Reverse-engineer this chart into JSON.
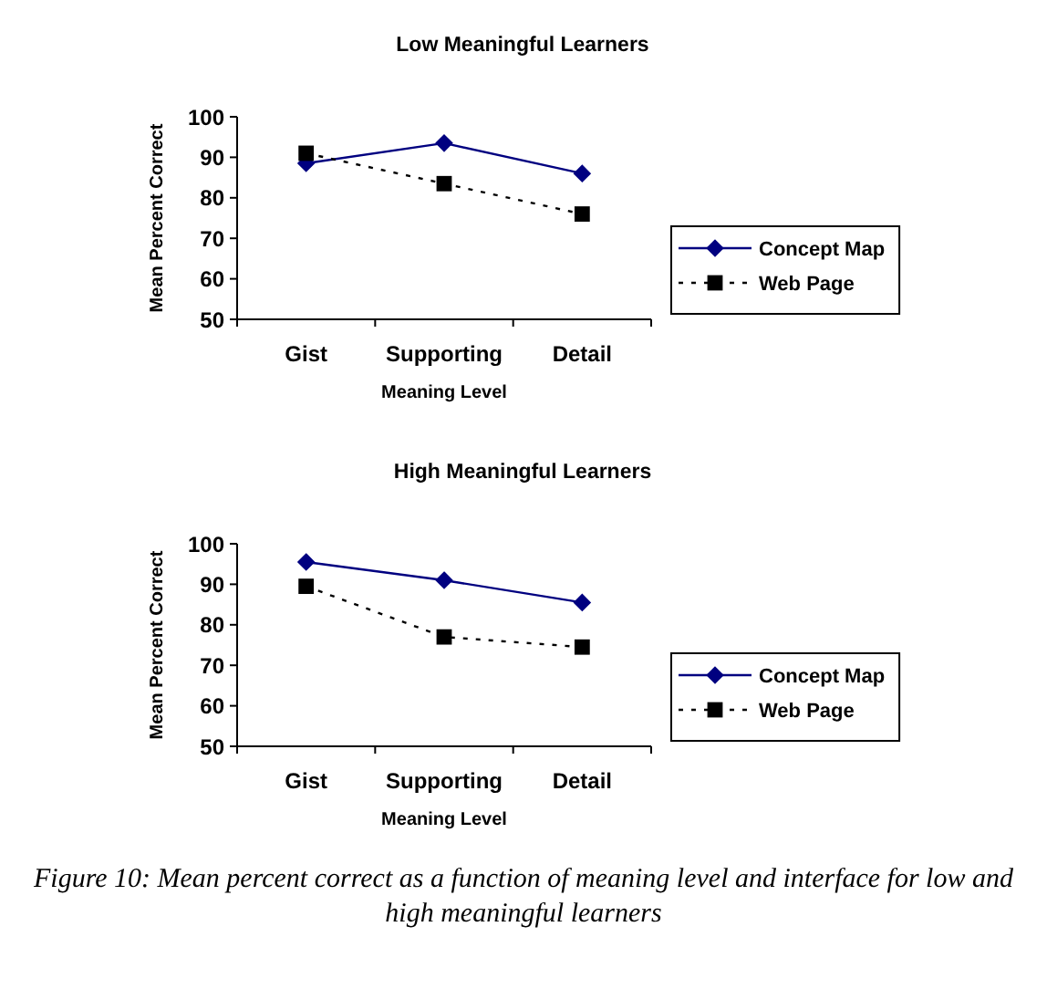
{
  "chart_data": [
    {
      "type": "line",
      "title": "Low Meaningful Learners",
      "xlabel": "Meaning Level",
      "ylabel": "Mean Percent Correct",
      "categories": [
        "Gist",
        "Supporting",
        "Detail"
      ],
      "ylim": [
        50,
        100
      ],
      "yticks": [
        50,
        60,
        70,
        80,
        90,
        100
      ],
      "legend": "right",
      "series": [
        {
          "name": "Concept Map",
          "color": "#000080",
          "values": [
            88.5,
            93.5,
            86
          ],
          "marker": "diamond",
          "line_style": "solid"
        },
        {
          "name": "Web Page",
          "color": "#000000",
          "values": [
            91,
            83.5,
            76
          ],
          "marker": "square",
          "line_style": "dotted"
        }
      ]
    },
    {
      "type": "line",
      "title": "High Meaningful Learners",
      "xlabel": "Meaning Level",
      "ylabel": "Mean Percent Correct",
      "categories": [
        "Gist",
        "Supporting",
        "Detail"
      ],
      "ylim": [
        50,
        100
      ],
      "yticks": [
        50,
        60,
        70,
        80,
        90,
        100
      ],
      "legend": "right",
      "series": [
        {
          "name": "Concept Map",
          "color": "#000080",
          "values": [
            95.5,
            91,
            85.5
          ],
          "marker": "diamond",
          "line_style": "solid"
        },
        {
          "name": "Web Page",
          "color": "#000000",
          "values": [
            89.5,
            77,
            74.5
          ],
          "marker": "square",
          "line_style": "dotted"
        }
      ],
      "annotations": [
        "Figure 10: Mean percent correct as a function of meaning level and interface for low and high meaningful learners"
      ]
    }
  ]
}
